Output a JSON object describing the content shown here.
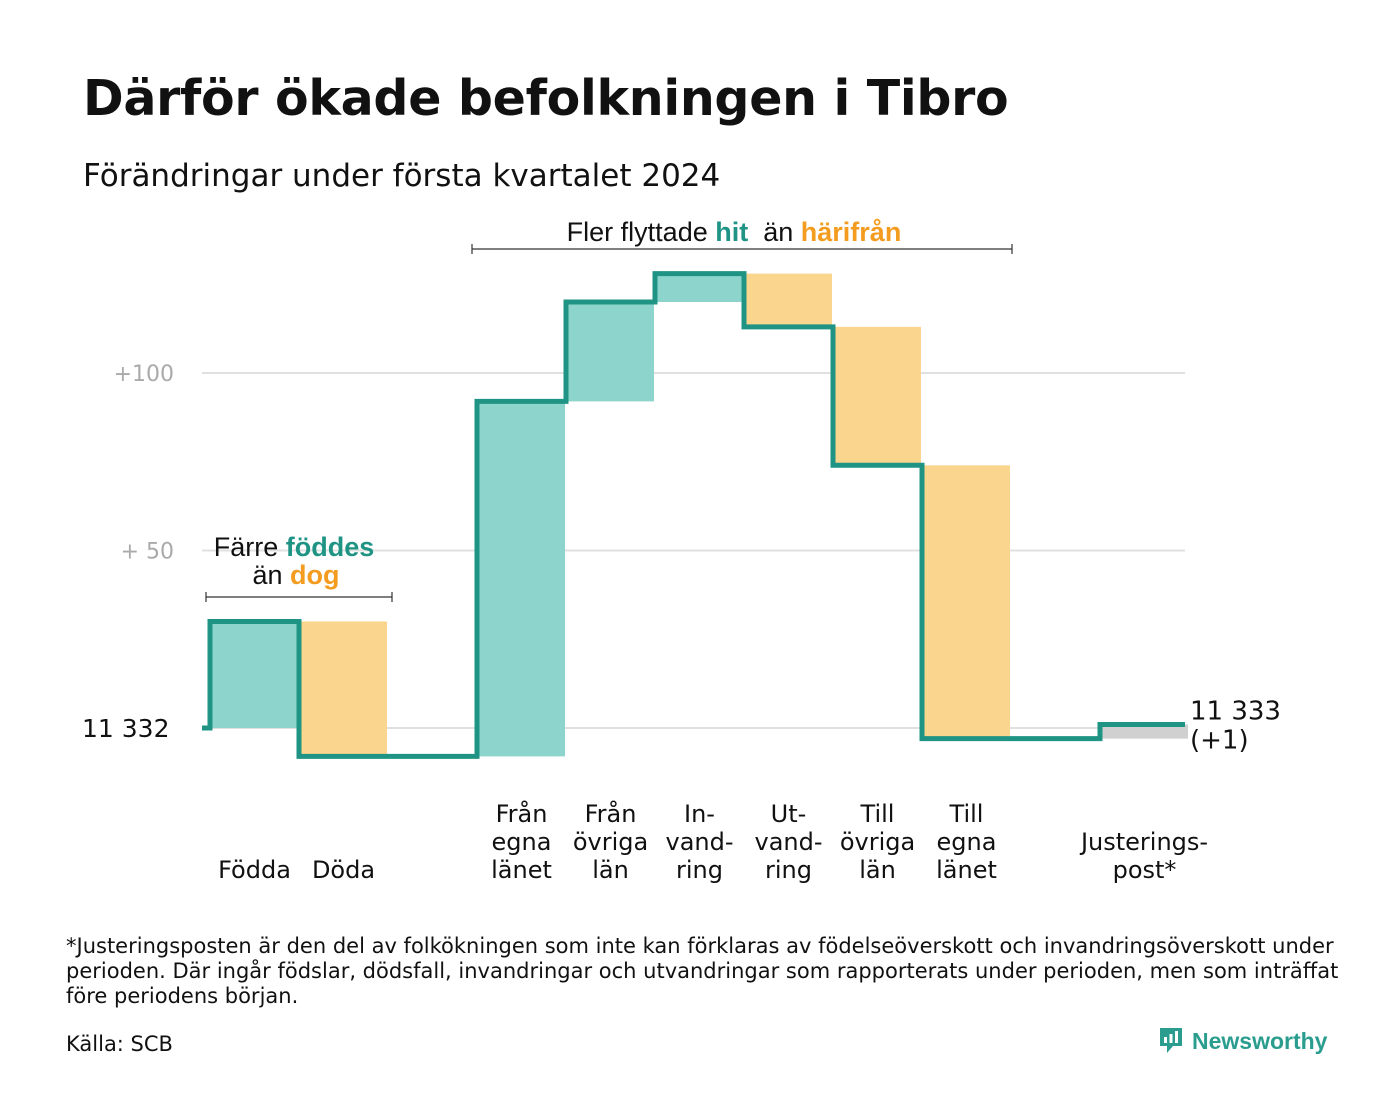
{
  "title": "Därför ökade befolkningen i Tibro",
  "subtitle": "Förändringar under första kvartalet 2024",
  "footnote": "*Justeringsposten är den del av folkökningen som inte kan förklaras av födelseöverskott och invandringsöverskott under perioden. Där ingår födslar, dödsfall, invandringar och utvandringar som rapporterats under perioden, men som inträffat före periodens början.",
  "source": "Källa: SCB",
  "brand": "Newsworthy",
  "colors": {
    "increase": "#8dd5cc",
    "decrease": "#fad58e",
    "adjustment": "#d0d0d0",
    "line": "#1f9484",
    "teal_text": "#1f9484",
    "orange_text": "#f39c1f",
    "grid": "#e0e0e0",
    "tick": "#aaaaaa"
  },
  "chart_data": {
    "type": "waterfall",
    "start_value": 11332,
    "start_label": "11  332",
    "end_value": 11333,
    "end_label_value": "11 333",
    "end_label_change": "(+1)",
    "ylim": [
      -12,
      133
    ],
    "y_ticks": [
      {
        "value": 100,
        "label": "+100"
      },
      {
        "value": 50,
        "label": "+  50"
      }
    ],
    "steps": [
      {
        "label": [
          "Födda"
        ],
        "change": 30
      },
      {
        "label": [
          "Döda"
        ],
        "change": -38
      },
      {
        "label": [],
        "change": 0
      },
      {
        "label": [
          "Från",
          "egna",
          "länet"
        ],
        "change": 100
      },
      {
        "label": [
          "Från",
          "övriga",
          "län"
        ],
        "change": 28
      },
      {
        "label": [
          "In-",
          "vand-",
          "ring"
        ],
        "change": 8
      },
      {
        "label": [
          "Ut-",
          "vand-",
          "ring"
        ],
        "change": -15
      },
      {
        "label": [
          "Till",
          "övriga",
          "län"
        ],
        "change": -39
      },
      {
        "label": [
          "Till",
          "egna",
          "länet"
        ],
        "change": -77
      },
      {
        "label": [],
        "change": 0
      },
      {
        "label": [
          "Justerings-",
          "post*"
        ],
        "change": 4
      }
    ],
    "annotations": [
      {
        "parts": [
          {
            "text": "Färre ",
            "tone": "plain"
          },
          {
            "text": "föddes",
            "tone": "teal"
          }
        ],
        "parts2": [
          {
            "text": "än ",
            "tone": "plain"
          },
          {
            "text": "dog",
            "tone": "orange"
          }
        ]
      },
      {
        "parts": [
          {
            "text": "Fler flyttade ",
            "tone": "plain"
          },
          {
            "text": "hit",
            "tone": "teal"
          },
          {
            "text": "  än ",
            "tone": "plain"
          },
          {
            "text": "härifrån",
            "tone": "orange"
          }
        ]
      }
    ]
  }
}
